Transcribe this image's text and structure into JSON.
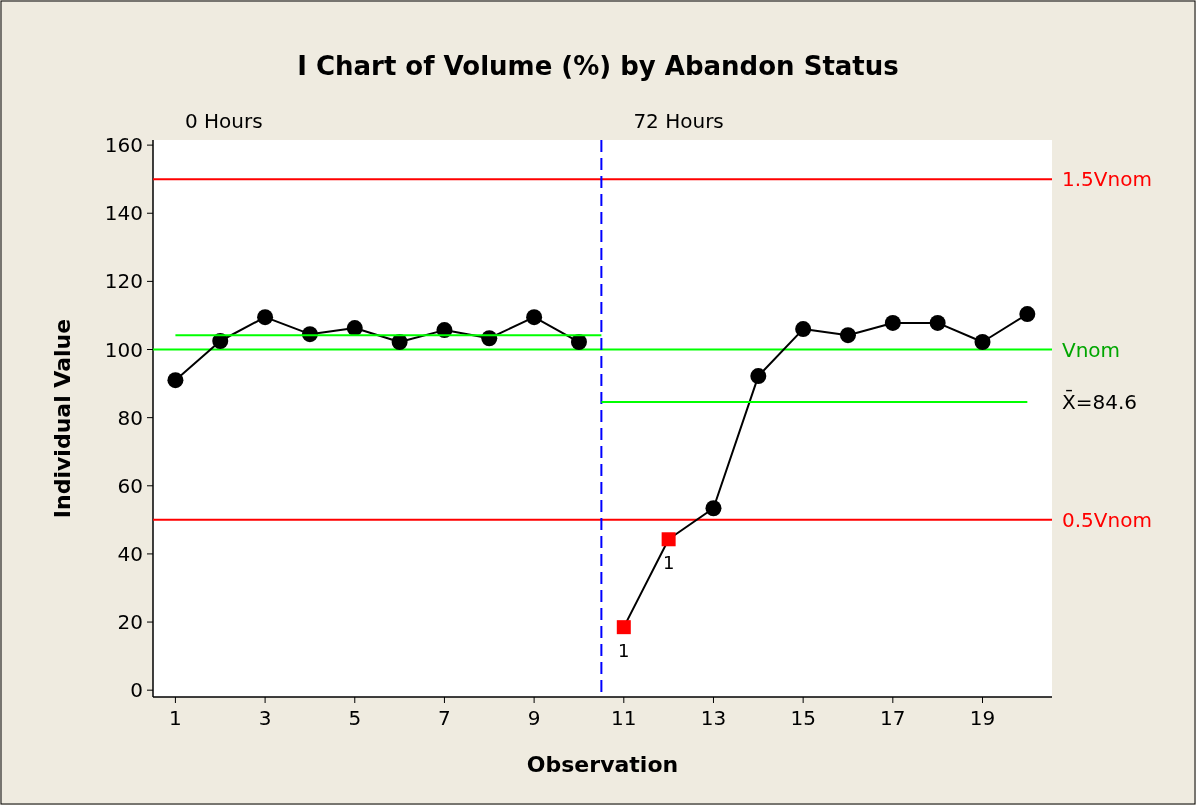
{
  "chart_data": {
    "type": "line",
    "title": "I Chart of Volume (%) by Abandon Status",
    "xlabel": "Observation",
    "ylabel": "Individual Value",
    "xlim": [
      0.5,
      20.55
    ],
    "xticks": [
      1,
      3,
      5,
      7,
      9,
      11,
      13,
      15,
      17,
      19
    ],
    "ylim": [
      -2,
      161.5
    ],
    "yticks": [
      0,
      20,
      40,
      60,
      80,
      100,
      120,
      140,
      160
    ],
    "grid": false,
    "series": [
      {
        "color": "#000000",
        "marker": "circle",
        "x": [
          1,
          2,
          3,
          4,
          5,
          6,
          7,
          8,
          9,
          10
        ],
        "values": [
          91,
          102.5,
          109.5,
          104.5,
          106.3,
          102.2,
          105.7,
          103.3,
          109.5,
          102.2
        ]
      },
      {
        "color": "#000000",
        "marker": "none",
        "x": [
          11,
          12,
          13,
          14,
          15,
          16,
          17,
          18,
          19,
          20
        ],
        "values": [
          18.5,
          44.3,
          53.4,
          92.2,
          106,
          104.2,
          107.8,
          107.8,
          102.2,
          110.4
        ]
      },
      {
        "type": "scatter",
        "color": "#000000",
        "marker": "circle",
        "x": [
          13,
          14,
          15,
          16,
          17,
          18,
          19,
          20
        ],
        "values": [
          53.4,
          92.2,
          106,
          104.2,
          107.8,
          107.8,
          102.2,
          110.4
        ]
      },
      {
        "type": "scatter",
        "color": "#ff0000",
        "marker": "square",
        "x": [
          11,
          12
        ],
        "values": [
          18.5,
          44.3
        ]
      },
      {
        "color": "#00ff00",
        "marker": "none",
        "x": [
          1,
          10.5
        ],
        "values": [
          104.2,
          104.2
        ]
      },
      {
        "name": "X̄=84.6",
        "color": "#00ff00",
        "marker": "none",
        "x": [
          10.5,
          20
        ],
        "values": [
          84.6,
          84.6
        ]
      }
    ],
    "ref_lines": [
      {
        "axis": "y",
        "value": 150,
        "label": "1.5Vnom",
        "color": "#ff0000",
        "line_style": "solid"
      },
      {
        "axis": "y",
        "value": 100,
        "label": "Vnom",
        "color": "#00ff00",
        "line_style": "solid"
      },
      {
        "axis": "y",
        "value": 50,
        "label": "0.5Vnom",
        "color": "#ff0000",
        "line_style": "solid"
      },
      {
        "axis": "x",
        "value": 10.5,
        "color": "#0000ff",
        "line_style": "dashed"
      }
    ],
    "annotations": [
      "0 Hours",
      "72 Hours",
      {
        "text": "1",
        "x": 11,
        "y": 18.5
      },
      {
        "text": "1",
        "x": 12,
        "y": 44.3
      }
    ]
  }
}
